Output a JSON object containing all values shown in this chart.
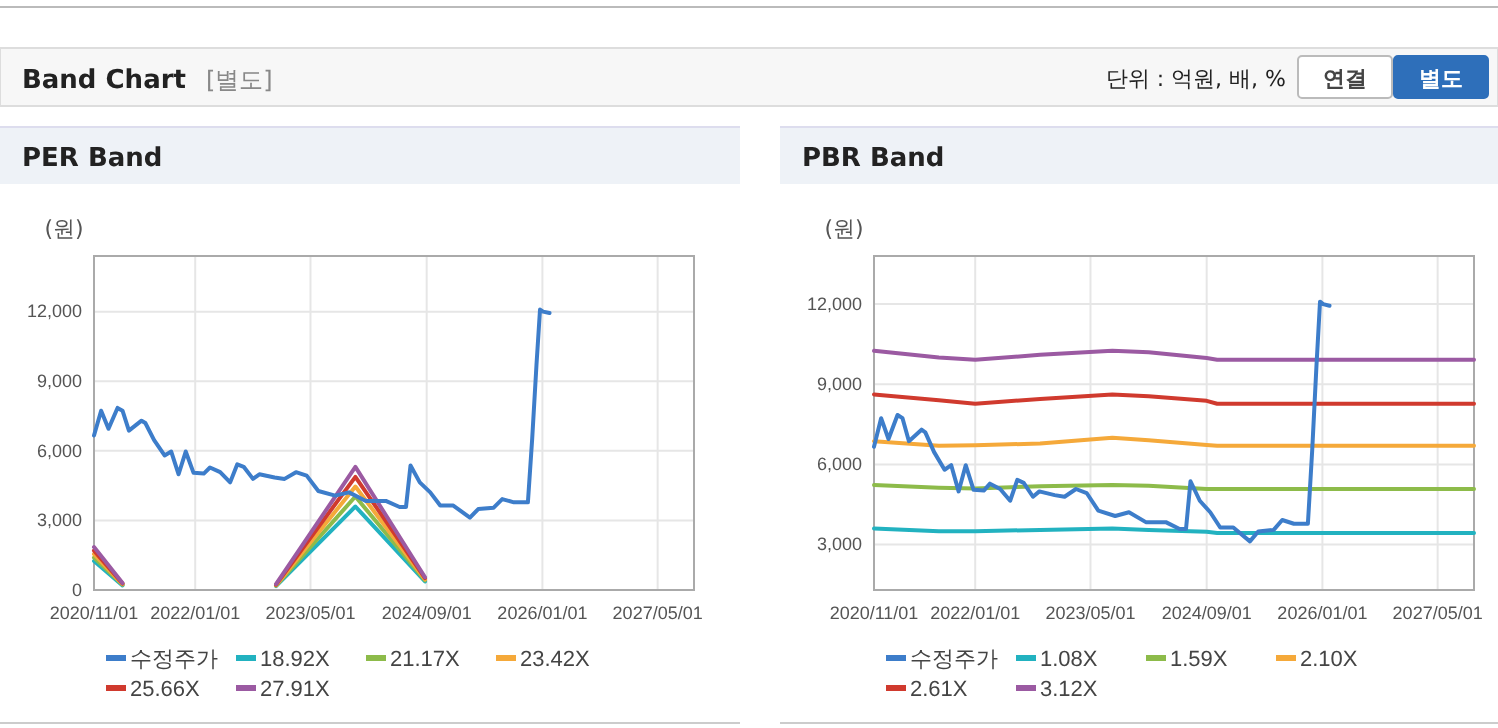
{
  "chart_data": [
    {
      "type": "other",
      "title": "Band Chart",
      "subtitle": "[별도]",
      "annotations": [
        "단위 : 억원, 배, %",
        "연결",
        "별도"
      ]
    },
    {
      "type": "line",
      "title": "PER Band",
      "ylabel": "(원)",
      "xlim": [
        "2020-11-01",
        "2027-10-01"
      ],
      "xticks": [
        {
          "value": "2020-11-01",
          "label": "2020/11/01"
        },
        {
          "value": "2022-01-01",
          "label": "2022/01/01"
        },
        {
          "value": "2023-05-01",
          "label": "2023/05/01"
        },
        {
          "value": "2024-09-01",
          "label": "2024/09/01"
        },
        {
          "value": "2026-01-01",
          "label": "2026/01/01"
        },
        {
          "value": "2027-05-01",
          "label": "2027/05/01"
        }
      ],
      "ylim": [
        0,
        14400
      ],
      "yticks": [
        {
          "value": 0,
          "label": "0"
        },
        {
          "value": 3000,
          "label": "3,000"
        },
        {
          "value": 6000,
          "label": "6,000"
        },
        {
          "value": 9000,
          "label": "9,000"
        },
        {
          "value": 12000,
          "label": "12,000"
        }
      ],
      "grid": true,
      "legend": "bottom",
      "series": [
        {
          "name": "수정주가",
          "color": "#3d7dca",
          "x": [
            "2020-11-01",
            "2020-12-01",
            "2021-01-01",
            "2021-02-08",
            "2021-03-01",
            "2021-03-28",
            "2021-05-20",
            "2021-06-05",
            "2021-07-12",
            "2021-08-25",
            "2021-09-22",
            "2021-10-23",
            "2021-11-22",
            "2021-12-25",
            "2022-02-06",
            "2022-03-04",
            "2022-04-16",
            "2022-05-28",
            "2022-06-27",
            "2022-07-24",
            "2022-09-01",
            "2022-09-28",
            "2022-12-01",
            "2023-01-12",
            "2023-03-01",
            "2023-04-15",
            "2023-06-03",
            "2023-08-13",
            "2023-10-10",
            "2023-12-20",
            "2024-03-13",
            "2024-05-10",
            "2024-06-06",
            "2024-06-25",
            "2024-08-03",
            "2024-09-16",
            "2024-10-28",
            "2024-12-22",
            "2025-03-02",
            "2025-04-06",
            "2025-06-10",
            "2025-07-16",
            "2025-09-03",
            "2025-11-01",
            "2025-11-19",
            "2025-12-07",
            "2025-12-22",
            "2026-01-04",
            "2026-01-31"
          ],
          "values": [
            6660,
            7730,
            6950,
            7850,
            7730,
            6870,
            7300,
            7200,
            6460,
            5800,
            5970,
            4990,
            5970,
            5050,
            5020,
            5280,
            5080,
            4640,
            5420,
            5310,
            4790,
            4990,
            4850,
            4790,
            5080,
            4930,
            4270,
            4070,
            4210,
            3840,
            3840,
            3580,
            3580,
            5370,
            4640,
            4210,
            3640,
            3640,
            3120,
            3490,
            3550,
            3920,
            3780,
            3780,
            6520,
            9690,
            12090,
            12000,
            11940
          ]
        },
        {
          "name": "18.92X",
          "color": "#22b2c0",
          "x": [
            "2020-11-01",
            "2021-03-01",
            "2022-06-01",
            "2022-12-07",
            "2023-11-06",
            "2024-08-25"
          ],
          "values": [
            1250,
            200,
            null,
            170,
            3600,
            370
          ]
        },
        {
          "name": "21.17X",
          "color": "#8dbb4a",
          "x": [
            "2020-11-01",
            "2021-03-01",
            "2022-06-01",
            "2022-12-07",
            "2023-11-06",
            "2024-08-25"
          ],
          "values": [
            1400,
            230,
            null,
            190,
            4030,
            420
          ]
        },
        {
          "name": "23.42X",
          "color": "#f5a93a",
          "x": [
            "2020-11-01",
            "2021-03-01",
            "2022-06-01",
            "2022-12-07",
            "2023-11-06",
            "2024-08-25"
          ],
          "values": [
            1550,
            250,
            null,
            210,
            4460,
            460
          ]
        },
        {
          "name": "25.66X",
          "color": "#d03a2e",
          "x": [
            "2020-11-01",
            "2021-03-01",
            "2022-06-01",
            "2022-12-07",
            "2023-11-06",
            "2024-08-25"
          ],
          "values": [
            1700,
            280,
            null,
            230,
            4880,
            510
          ]
        },
        {
          "name": "27.91X",
          "color": "#9b5aa2",
          "x": [
            "2020-11-01",
            "2021-03-01",
            "2022-06-01",
            "2022-12-07",
            "2023-11-06",
            "2024-08-25"
          ],
          "values": [
            1850,
            300,
            null,
            250,
            5310,
            550
          ]
        }
      ]
    },
    {
      "type": "line",
      "title": "PBR Band",
      "ylabel": "(원)",
      "xlim": [
        "2020-11-01",
        "2027-10-01"
      ],
      "xticks": [
        {
          "value": "2020-11-01",
          "label": "2020/11/01"
        },
        {
          "value": "2022-01-01",
          "label": "2022/01/01"
        },
        {
          "value": "2023-05-01",
          "label": "2023/05/01"
        },
        {
          "value": "2024-09-01",
          "label": "2024/09/01"
        },
        {
          "value": "2026-01-01",
          "label": "2026/01/01"
        },
        {
          "value": "2027-05-01",
          "label": "2027/05/01"
        }
      ],
      "ylim": [
        1300,
        13800
      ],
      "yticks": [
        {
          "value": 3000,
          "label": "3,000"
        },
        {
          "value": 6000,
          "label": "6,000"
        },
        {
          "value": 9000,
          "label": "9,000"
        },
        {
          "value": 12000,
          "label": "12,000"
        }
      ],
      "grid": true,
      "legend": "bottom",
      "series": [
        {
          "name": "수정주가",
          "color": "#3d7dca",
          "x": [
            "2020-11-01",
            "2020-12-01",
            "2021-01-01",
            "2021-02-08",
            "2021-03-01",
            "2021-03-28",
            "2021-05-20",
            "2021-06-05",
            "2021-07-12",
            "2021-08-25",
            "2021-09-22",
            "2021-10-23",
            "2021-11-22",
            "2021-12-25",
            "2022-02-06",
            "2022-03-04",
            "2022-04-16",
            "2022-05-28",
            "2022-06-27",
            "2022-07-24",
            "2022-09-01",
            "2022-09-28",
            "2022-12-01",
            "2023-01-12",
            "2023-03-01",
            "2023-04-15",
            "2023-06-03",
            "2023-08-13",
            "2023-10-10",
            "2023-12-20",
            "2024-03-13",
            "2024-05-10",
            "2024-06-06",
            "2024-06-25",
            "2024-08-03",
            "2024-09-16",
            "2024-10-28",
            "2024-12-22",
            "2025-03-02",
            "2025-04-06",
            "2025-06-10",
            "2025-07-16",
            "2025-09-03",
            "2025-11-01",
            "2025-11-19",
            "2025-12-07",
            "2025-12-22",
            "2026-01-04",
            "2026-01-31"
          ],
          "values": [
            6660,
            7730,
            6950,
            7850,
            7730,
            6870,
            7300,
            7200,
            6460,
            5800,
            5970,
            4990,
            5970,
            5050,
            5020,
            5280,
            5080,
            4640,
            5420,
            5310,
            4790,
            4990,
            4850,
            4790,
            5080,
            4930,
            4270,
            4070,
            4210,
            3840,
            3840,
            3580,
            3580,
            5370,
            4640,
            4210,
            3640,
            3640,
            3120,
            3490,
            3550,
            3920,
            3780,
            3780,
            6520,
            9690,
            12090,
            12000,
            11940
          ]
        },
        {
          "name": "1.08X",
          "color": "#22b2c0",
          "x": [
            "2020-11-01",
            "2021-08-01",
            "2022-01-01",
            "2022-10-01",
            "2023-08-01",
            "2024-01-01",
            "2024-09-01",
            "2024-10-15",
            "2027-10-01"
          ],
          "values": [
            3600,
            3500,
            3500,
            3550,
            3600,
            3550,
            3480,
            3430,
            3430
          ]
        },
        {
          "name": "1.59X",
          "color": "#8dbb4a",
          "x": [
            "2020-11-01",
            "2021-08-01",
            "2022-01-01",
            "2022-10-01",
            "2023-08-01",
            "2024-01-01",
            "2024-09-01",
            "2024-10-15",
            "2027-10-01"
          ],
          "values": [
            5230,
            5130,
            5100,
            5180,
            5230,
            5200,
            5080,
            5080,
            5080
          ]
        },
        {
          "name": "2.10X",
          "color": "#f5a93a",
          "x": [
            "2020-11-01",
            "2021-08-01",
            "2022-01-01",
            "2022-10-01",
            "2023-08-01",
            "2024-01-01",
            "2024-09-01",
            "2024-10-15",
            "2027-10-01"
          ],
          "values": [
            6870,
            6700,
            6720,
            6780,
            7000,
            6900,
            6730,
            6700,
            6700
          ]
        },
        {
          "name": "2.61X",
          "color": "#d03a2e",
          "x": [
            "2020-11-01",
            "2021-08-01",
            "2022-01-01",
            "2022-10-01",
            "2023-08-01",
            "2024-01-01",
            "2024-09-01",
            "2024-10-15",
            "2027-10-01"
          ],
          "values": [
            8620,
            8400,
            8270,
            8450,
            8620,
            8550,
            8380,
            8270,
            8270
          ]
        },
        {
          "name": "3.12X",
          "color": "#9b5aa2",
          "x": [
            "2020-11-01",
            "2021-08-01",
            "2022-01-01",
            "2022-10-01",
            "2023-08-01",
            "2024-01-01",
            "2024-09-01",
            "2024-10-15",
            "2027-10-01"
          ],
          "values": [
            10250,
            10000,
            9920,
            10100,
            10250,
            10200,
            9980,
            9920,
            9920
          ]
        }
      ]
    }
  ]
}
